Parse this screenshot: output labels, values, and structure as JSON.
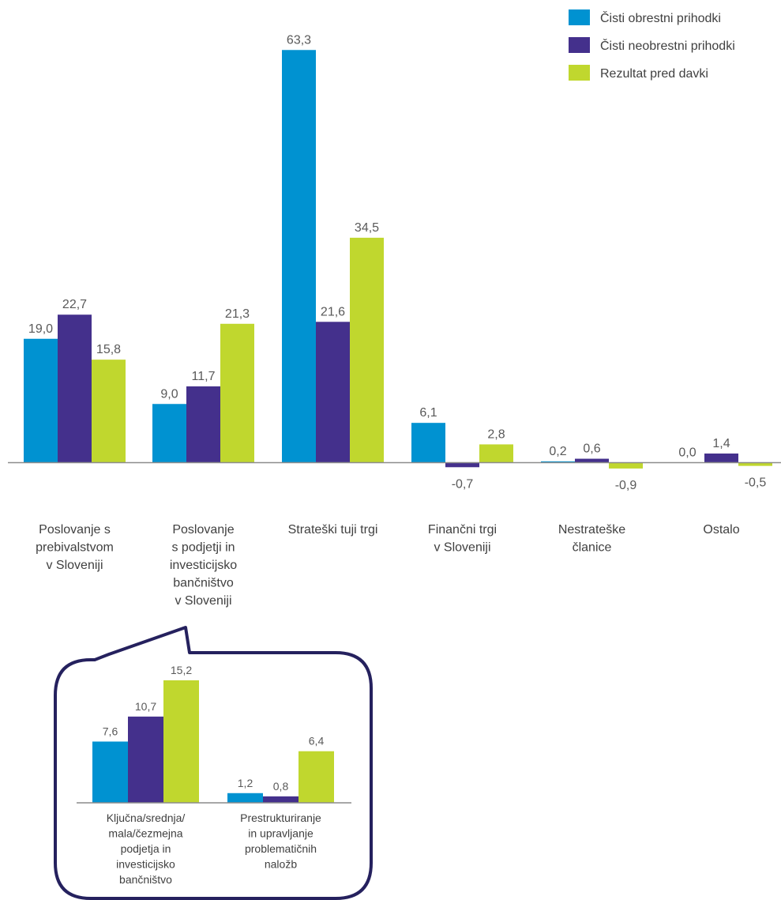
{
  "colors": {
    "series": [
      "#0092D1",
      "#44308C",
      "#C0D72E"
    ],
    "axis": "#8c8c8c",
    "callout_border": "#25215E"
  },
  "chart_data": [
    {
      "type": "bar",
      "title": "",
      "xlabel": "",
      "ylabel": "",
      "ylim": [
        -1.5,
        70
      ],
      "legend": "top-right",
      "grid": false,
      "categories": [
        [
          "Poslovanje  s",
          "prebivalstvom",
          "v Sloveniji"
        ],
        [
          "Poslovanje",
          "s podjetji  in",
          "investicijsko",
          "bančništvo",
          "v Sloveniji"
        ],
        [
          "Strateški  tuji trgi"
        ],
        [
          "Finančni trgi",
          "v Sloveniji"
        ],
        [
          "Nestrateške",
          "članice"
        ],
        [
          "Ostalo"
        ]
      ],
      "series": [
        {
          "name": "Čisti obrestni prihodki",
          "values": [
            19.0,
            9.0,
            63.3,
            6.1,
            0.2,
            0.0
          ],
          "labels": [
            "19,0",
            "9,0",
            "63,3",
            "6,1",
            "0,2",
            "0,0"
          ]
        },
        {
          "name": "Čisti neobrestni prihodki",
          "values": [
            22.7,
            11.7,
            21.6,
            -0.7,
            0.6,
            1.4
          ],
          "labels": [
            "22,7",
            "11,7",
            "21,6",
            "-0,7",
            "0,6",
            "1,4"
          ]
        },
        {
          "name": "Rezultat  pred davki",
          "values": [
            15.8,
            21.3,
            34.5,
            2.8,
            -0.9,
            -0.5
          ],
          "labels": [
            "15,8",
            "21,3",
            "34,5",
            "2,8",
            "-0,9",
            "-0,5"
          ]
        }
      ]
    },
    {
      "type": "bar",
      "title": "",
      "categories": [
        [
          "Ključna/srednja/",
          "mala/čezmejna",
          "podjetja in",
          "investicijsko",
          "bančništvo"
        ],
        [
          "Prestrukturiranje",
          "in upravljanje",
          "problematičnih",
          "naložb"
        ]
      ],
      "series": [
        {
          "name": "Čisti obrestni prihodki",
          "values": [
            7.6,
            1.2
          ],
          "labels": [
            "7,6",
            "1,2"
          ]
        },
        {
          "name": "Čisti neobrestni prihodki",
          "values": [
            10.7,
            0.8
          ],
          "labels": [
            "10,7",
            "0,8"
          ]
        },
        {
          "name": "Rezultat  pred davki",
          "values": [
            15.2,
            6.4
          ],
          "labels": [
            "15,2",
            "6,4"
          ]
        }
      ]
    }
  ]
}
